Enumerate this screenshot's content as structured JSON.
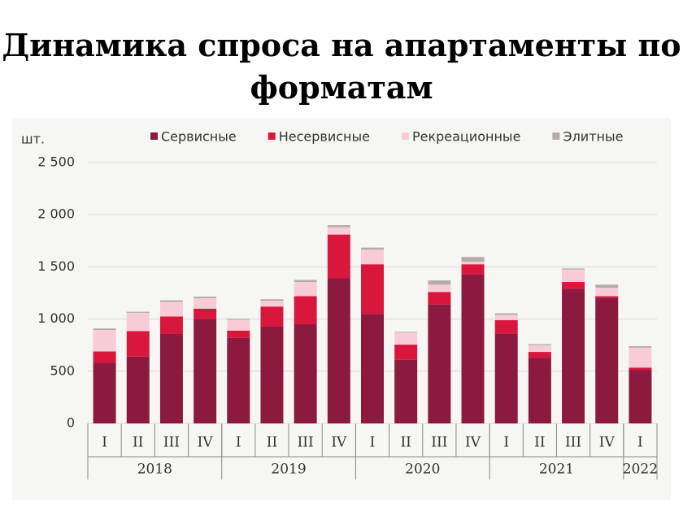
{
  "chart_data": {
    "type": "stacked-bar",
    "title": "Динамика спроса на апартаменты по форматам",
    "y_label": "шт.",
    "categories": [
      "I",
      "II",
      "III",
      "IV",
      "I",
      "II",
      "III",
      "IV",
      "I",
      "II",
      "III",
      "IV",
      "I",
      "II",
      "III",
      "IV",
      "I"
    ],
    "category_groups": [
      {
        "label": "2018",
        "count": 4
      },
      {
        "label": "2019",
        "count": 4
      },
      {
        "label": "2020",
        "count": 4
      },
      {
        "label": "2021",
        "count": 4
      },
      {
        "label": "2022",
        "count": 1
      }
    ],
    "series": [
      {
        "name": "Сервисные",
        "color": "#8c1a40",
        "values": [
          580,
          640,
          860,
          1000,
          820,
          930,
          950,
          1390,
          1050,
          610,
          1140,
          1430,
          860,
          630,
          1290,
          1200,
          510
        ]
      },
      {
        "name": "Несервисные",
        "color": "#d9173d",
        "values": [
          110,
          245,
          165,
          100,
          70,
          190,
          270,
          420,
          475,
          145,
          120,
          95,
          130,
          55,
          65,
          20,
          25
        ]
      },
      {
        "name": "Рекреационные",
        "color": "#f8ccd6",
        "values": [
          205,
          175,
          140,
          100,
          105,
          55,
          135,
          70,
          140,
          120,
          70,
          25,
          50,
          65,
          120,
          80,
          190
        ]
      },
      {
        "name": "Элитные",
        "color": "#b3aca8",
        "values": [
          15,
          10,
          15,
          15,
          10,
          15,
          20,
          20,
          20,
          5,
          40,
          45,
          15,
          10,
          10,
          30,
          15
        ]
      }
    ],
    "ylim": [
      0,
      2500
    ],
    "yticks": [
      0,
      500,
      {
        "value": 1000,
        "label": "1 000"
      },
      {
        "value": 1500,
        "label": "1 500"
      },
      {
        "value": 2000,
        "label": "2 000"
      },
      {
        "value": 2500,
        "label": "2 500"
      }
    ],
    "grid": true,
    "legend": "top"
  }
}
